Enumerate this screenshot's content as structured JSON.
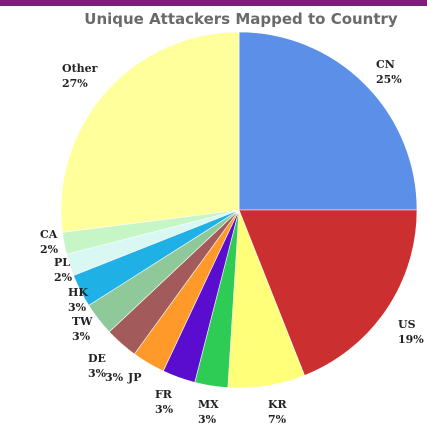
{
  "chart_data": {
    "type": "pie",
    "title": "Unique Attackers Mapped to Country",
    "slices": [
      {
        "label": "CN",
        "value": 25,
        "value_label": "25%",
        "color": "#5b8fe8"
      },
      {
        "label": "US",
        "value": 19,
        "value_label": "19%",
        "color": "#cc2f2f"
      },
      {
        "label": "KR",
        "value": 7,
        "value_label": "7%",
        "color": "#ffff7a"
      },
      {
        "label": "MX",
        "value": 3,
        "value_label": "3%",
        "color": "#2fcc55"
      },
      {
        "label": "JP",
        "value": 3,
        "value_label": "3%",
        "color": "#5a0ccf"
      },
      {
        "label": "FR",
        "value": 3,
        "value_label": "3%",
        "color": "#ff9a2a"
      },
      {
        "label": "DE",
        "value": 3,
        "value_label": "3%",
        "color": "#a35a5a"
      },
      {
        "label": "TW",
        "value": 3,
        "value_label": "3%",
        "color": "#8fc99a"
      },
      {
        "label": "HK",
        "value": 3,
        "value_label": "3%",
        "color": "#1fb0e6"
      },
      {
        "label": "PL",
        "value": 2,
        "value_label": "2%",
        "color": "#d9f7f3"
      },
      {
        "label": "CA",
        "value": 2,
        "value_label": "2%",
        "color": "#c6f5c6"
      },
      {
        "label": "Other",
        "value": 27,
        "value_label": "27%",
        "color": "#ffff9c"
      }
    ],
    "start_angle_deg": 0,
    "direction": "clockwise"
  }
}
